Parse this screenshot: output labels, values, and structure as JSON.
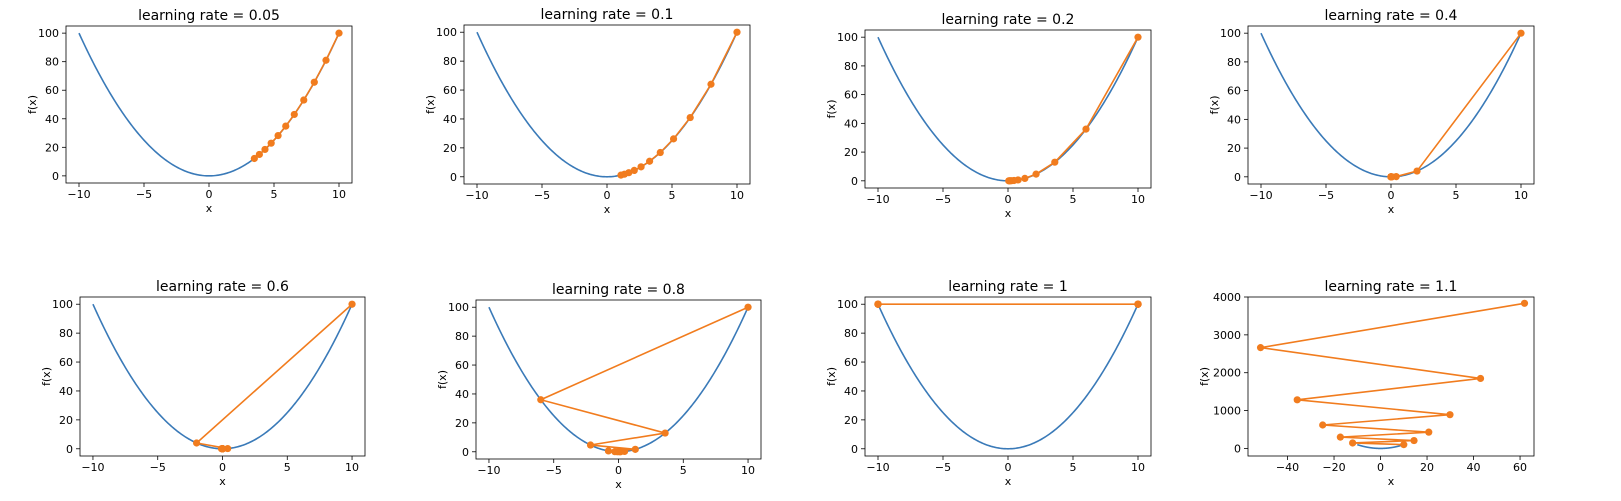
{
  "figure": {
    "panel_count": 8
  },
  "colors": {
    "curve": "#3a7ab8",
    "path": "#f17c1e",
    "axes": "#000000",
    "background": "#ffffff"
  },
  "chart_data": [
    {
      "type": "line",
      "title": "learning rate = 0.05",
      "xlabel": "x",
      "ylabel": "f(x)",
      "xlim": [
        -11,
        11
      ],
      "ylim": [
        -5,
        105
      ],
      "xticks": [
        -10,
        -5,
        0,
        5,
        10
      ],
      "xtick_labels": [
        "-10",
        "-5",
        "0",
        "5",
        "10"
      ],
      "yticks": [
        0,
        20,
        40,
        60,
        80,
        100
      ],
      "ytick_labels": [
        "0",
        "20",
        "40",
        "60",
        "80",
        "100"
      ],
      "series": [
        {
          "kind": "curve",
          "function": "x^2",
          "x_range": [
            -10,
            10
          ]
        },
        {
          "kind": "path",
          "x": [
            10,
            9,
            8.1,
            7.29,
            6.561,
            5.905,
            5.314,
            4.783,
            4.305,
            3.874,
            3.487
          ],
          "y": [
            100,
            81,
            65.61,
            53.14,
            43.05,
            34.87,
            28.24,
            22.88,
            18.53,
            15.01,
            12.16
          ]
        }
      ]
    },
    {
      "type": "line",
      "title": "learning rate = 0.1",
      "xlabel": "x",
      "ylabel": "f(x)",
      "xlim": [
        -11,
        11
      ],
      "ylim": [
        -5,
        105
      ],
      "xticks": [
        -10,
        -5,
        0,
        5,
        10
      ],
      "xtick_labels": [
        "-10",
        "-5",
        "0",
        "5",
        "10"
      ],
      "yticks": [
        0,
        20,
        40,
        60,
        80,
        100
      ],
      "ytick_labels": [
        "0",
        "20",
        "40",
        "60",
        "80",
        "100"
      ],
      "series": [
        {
          "kind": "curve",
          "function": "x^2",
          "x_range": [
            -10,
            10
          ]
        },
        {
          "kind": "path",
          "x": [
            10,
            8,
            6.4,
            5.12,
            4.096,
            3.277,
            2.621,
            2.097,
            1.678,
            1.342,
            1.074
          ],
          "y": [
            100,
            64,
            40.96,
            26.21,
            16.78,
            10.74,
            6.87,
            4.4,
            2.81,
            1.8,
            1.15
          ]
        }
      ]
    },
    {
      "type": "line",
      "title": "learning rate = 0.2",
      "xlabel": "x",
      "ylabel": "f(x)",
      "xlim": [
        -11,
        11
      ],
      "ylim": [
        -5,
        105
      ],
      "xticks": [
        -10,
        -5,
        0,
        5,
        10
      ],
      "xtick_labels": [
        "-10",
        "-5",
        "0",
        "5",
        "10"
      ],
      "yticks": [
        0,
        20,
        40,
        60,
        80,
        100
      ],
      "ytick_labels": [
        "0",
        "20",
        "40",
        "60",
        "80",
        "100"
      ],
      "series": [
        {
          "kind": "curve",
          "function": "x^2",
          "x_range": [
            -10,
            10
          ]
        },
        {
          "kind": "path",
          "x": [
            10,
            6,
            3.6,
            2.16,
            1.296,
            0.778,
            0.467,
            0.28,
            0.168,
            0.101,
            0.06
          ],
          "y": [
            100,
            36,
            12.96,
            4.67,
            1.68,
            0.6,
            0.22,
            0.08,
            0.03,
            0.01,
            0
          ]
        }
      ]
    },
    {
      "type": "line",
      "title": "learning rate = 0.4",
      "xlabel": "x",
      "ylabel": "f(x)",
      "xlim": [
        -11,
        11
      ],
      "ylim": [
        -5,
        105
      ],
      "xticks": [
        -10,
        -5,
        0,
        5,
        10
      ],
      "xtick_labels": [
        "-10",
        "-5",
        "0",
        "5",
        "10"
      ],
      "yticks": [
        0,
        20,
        40,
        60,
        80,
        100
      ],
      "ytick_labels": [
        "0",
        "20",
        "40",
        "60",
        "80",
        "100"
      ],
      "series": [
        {
          "kind": "curve",
          "function": "x^2",
          "x_range": [
            -10,
            10
          ]
        },
        {
          "kind": "path",
          "x": [
            10,
            2,
            0.4,
            0.08,
            0.016,
            0.003,
            0.001,
            0,
            0,
            0,
            0
          ],
          "y": [
            100,
            4,
            0.16,
            0.01,
            0,
            0,
            0,
            0,
            0,
            0,
            0
          ]
        }
      ]
    },
    {
      "type": "line",
      "title": "learning rate = 0.6",
      "xlabel": "x",
      "ylabel": "f(x)",
      "xlim": [
        -11,
        11
      ],
      "ylim": [
        -5,
        105
      ],
      "xticks": [
        -10,
        -5,
        0,
        5,
        10
      ],
      "xtick_labels": [
        "-10",
        "-5",
        "0",
        "5",
        "10"
      ],
      "yticks": [
        0,
        20,
        40,
        60,
        80,
        100
      ],
      "ytick_labels": [
        "0",
        "20",
        "40",
        "60",
        "80",
        "100"
      ],
      "series": [
        {
          "kind": "curve",
          "function": "x^2",
          "x_range": [
            -10,
            10
          ]
        },
        {
          "kind": "path",
          "x": [
            10,
            -2,
            0.4,
            -0.08,
            0.016,
            -0.003,
            0.001,
            0,
            0,
            0,
            0
          ],
          "y": [
            100,
            4,
            0.16,
            0.01,
            0,
            0,
            0,
            0,
            0,
            0,
            0
          ]
        }
      ]
    },
    {
      "type": "line",
      "title": "learning rate = 0.8",
      "xlabel": "x",
      "ylabel": "f(x)",
      "xlim": [
        -11,
        11
      ],
      "ylim": [
        -5,
        105
      ],
      "xticks": [
        -10,
        -5,
        0,
        5,
        10
      ],
      "xtick_labels": [
        "-10",
        "-5",
        "0",
        "5",
        "10"
      ],
      "yticks": [
        0,
        20,
        40,
        60,
        80,
        100
      ],
      "ytick_labels": [
        "0",
        "20",
        "40",
        "60",
        "80",
        "100"
      ],
      "series": [
        {
          "kind": "curve",
          "function": "x^2",
          "x_range": [
            -10,
            10
          ]
        },
        {
          "kind": "path",
          "x": [
            10,
            -6,
            3.6,
            -2.16,
            1.296,
            -0.778,
            0.467,
            -0.28,
            0.168,
            -0.101,
            0.06
          ],
          "y": [
            100,
            36,
            12.96,
            4.67,
            1.68,
            0.6,
            0.22,
            0.08,
            0.03,
            0.01,
            0
          ]
        }
      ]
    },
    {
      "type": "line",
      "title": "learning rate = 1",
      "xlabel": "x",
      "ylabel": "f(x)",
      "xlim": [
        -11,
        11
      ],
      "ylim": [
        -5,
        105
      ],
      "xticks": [
        -10,
        -5,
        0,
        5,
        10
      ],
      "xtick_labels": [
        "-10",
        "-5",
        "0",
        "5",
        "10"
      ],
      "yticks": [
        0,
        20,
        40,
        60,
        80,
        100
      ],
      "ytick_labels": [
        "0",
        "20",
        "40",
        "60",
        "80",
        "100"
      ],
      "series": [
        {
          "kind": "curve",
          "function": "x^2",
          "x_range": [
            -10,
            10
          ]
        },
        {
          "kind": "path",
          "x": [
            10,
            -10,
            10,
            -10,
            10,
            -10,
            10,
            -10,
            10,
            -10,
            10
          ],
          "y": [
            100,
            100,
            100,
            100,
            100,
            100,
            100,
            100,
            100,
            100,
            100
          ]
        }
      ]
    },
    {
      "type": "line",
      "title": "learning rate = 1.1",
      "xlabel": "x",
      "ylabel": "f(x)",
      "xlim": [
        -57,
        66
      ],
      "ylim": [
        -200,
        4000
      ],
      "xticks": [
        -40,
        -20,
        0,
        20,
        40,
        60
      ],
      "xtick_labels": [
        "-40",
        "-20",
        "0",
        "20",
        "40",
        "60"
      ],
      "yticks": [
        0,
        1000,
        2000,
        3000,
        4000
      ],
      "ytick_labels": [
        "0",
        "1000",
        "2000",
        "3000",
        "4000"
      ],
      "series": [
        {
          "kind": "curve",
          "function": "x^2",
          "x_range": [
            -10,
            10
          ]
        },
        {
          "kind": "path",
          "x": [
            10,
            -12,
            14.4,
            -17.28,
            20.74,
            -24.88,
            29.86,
            -35.83,
            43,
            -51.6,
            61.92
          ],
          "y": [
            100,
            144,
            207.36,
            298.6,
            429.98,
            619.17,
            891.61,
            1283.92,
            1848.85,
            2662.35,
            3833.78
          ]
        }
      ]
    }
  ]
}
